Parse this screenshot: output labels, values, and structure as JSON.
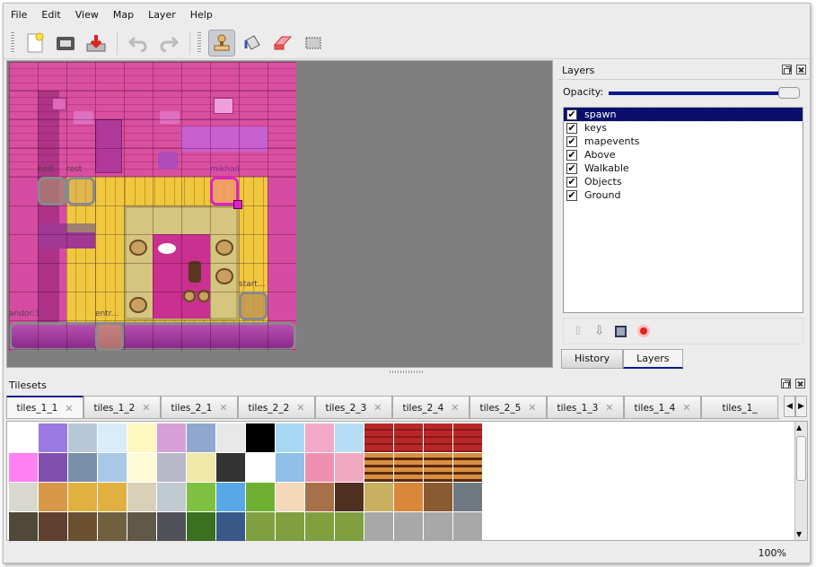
{
  "menu": [
    "File",
    "Edit",
    "View",
    "Map",
    "Layer",
    "Help"
  ],
  "toolbar": {
    "new": "new-icon",
    "open": "open-icon",
    "save": "save-icon",
    "undo": "undo-icon",
    "redo": "redo-icon",
    "stamp": "stamp-icon",
    "fill": "bucket-fill-icon",
    "eraser": "eraser-icon",
    "select": "rect-select-icon",
    "active_tool": "stamp"
  },
  "map": {
    "objects": [
      "bed",
      "rest",
      "mikhail",
      "start...",
      "andor:1",
      "entr..."
    ]
  },
  "layers_dock": {
    "title": "Layers",
    "opacity_label": "Opacity:",
    "opacity": 1.0,
    "layers": [
      {
        "name": "spawn",
        "visible": true,
        "selected": true
      },
      {
        "name": "keys",
        "visible": true
      },
      {
        "name": "mapevents",
        "visible": true
      },
      {
        "name": "Above",
        "visible": true
      },
      {
        "name": "Walkable",
        "visible": true
      },
      {
        "name": "Objects",
        "visible": true
      },
      {
        "name": "Ground",
        "visible": true
      }
    ],
    "tabs": [
      "History",
      "Layers"
    ],
    "active_tab": "Layers"
  },
  "tilesets": {
    "title": "Tilesets",
    "tabs": [
      "tiles_1_1",
      "tiles_1_2",
      "tiles_2_1",
      "tiles_2_2",
      "tiles_2_3",
      "tiles_2_4",
      "tiles_2_5",
      "tiles_1_3",
      "tiles_1_4",
      "tiles_1_"
    ],
    "active_tab": "tiles_1_1"
  },
  "status": {
    "zoom": "100%"
  }
}
